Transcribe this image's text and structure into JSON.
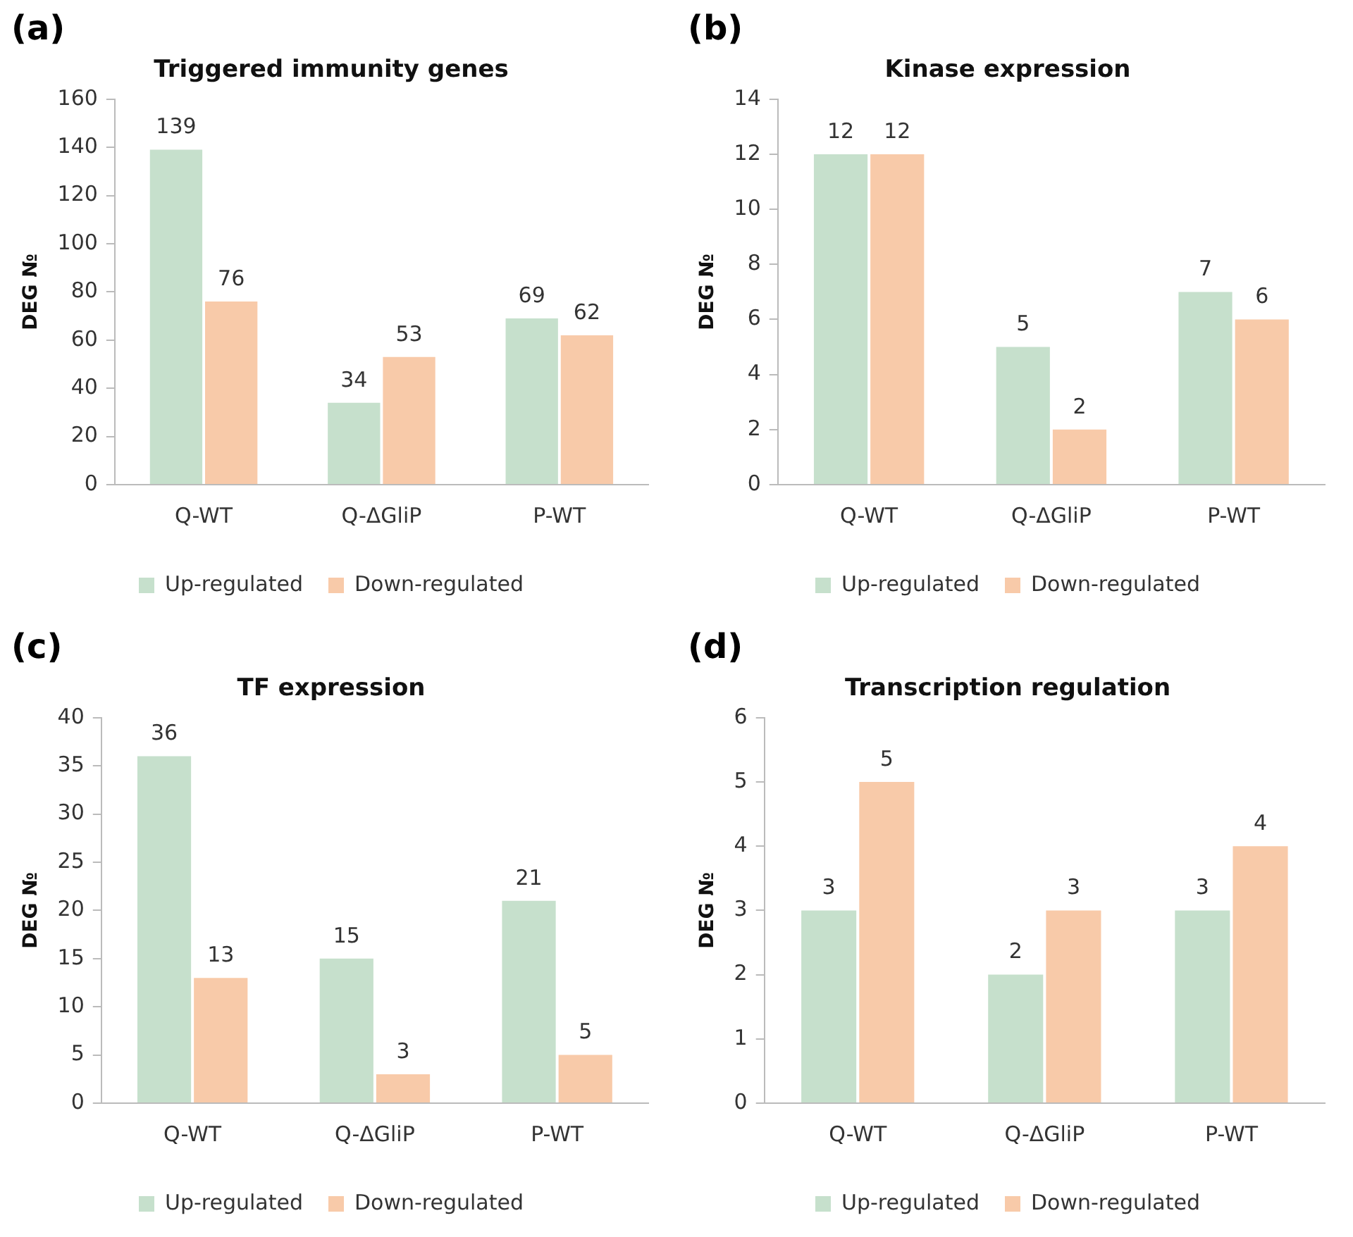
{
  "chart_data": [
    {
      "type": "bar",
      "title": "Triggered immunity genes",
      "ylabel": "DEG №",
      "annotations": [
        "(a)"
      ],
      "categories": [
        "Q-WT",
        "Q-ΔGliP",
        "P-WT"
      ],
      "series": [
        {
          "name": "Up-regulated",
          "color": "#c6e0cc",
          "values": [
            139,
            34,
            69
          ]
        },
        {
          "name": "Down-regulated",
          "color": "#f8caa9",
          "values": [
            76,
            53,
            62
          ]
        }
      ],
      "ylim": [
        0,
        160
      ],
      "yticks": [
        0,
        20,
        40,
        60,
        80,
        100,
        120,
        140,
        160
      ],
      "grid": false,
      "legend": "bottom",
      "data_labels": true
    },
    {
      "type": "bar",
      "title": "Kinase expression",
      "ylabel": "DEG №",
      "annotations": [
        "(b)"
      ],
      "categories": [
        "Q-WT",
        "Q-ΔGliP",
        "P-WT"
      ],
      "series": [
        {
          "name": "Up-regulated",
          "color": "#c6e0cc",
          "values": [
            12,
            5,
            7
          ]
        },
        {
          "name": "Down-regulated",
          "color": "#f8caa9",
          "values": [
            12,
            2,
            6
          ]
        }
      ],
      "ylim": [
        0,
        14
      ],
      "yticks": [
        0,
        2,
        4,
        6,
        8,
        10,
        12,
        14
      ],
      "grid": false,
      "legend": "bottom",
      "data_labels": true
    },
    {
      "type": "bar",
      "title": "TF expression",
      "ylabel": "DEG №",
      "annotations": [
        "(c)"
      ],
      "categories": [
        "Q-WT",
        "Q-ΔGliP",
        "P-WT"
      ],
      "series": [
        {
          "name": "Up-regulated",
          "color": "#c6e0cc",
          "values": [
            36,
            15,
            21
          ]
        },
        {
          "name": "Down-regulated",
          "color": "#f8caa9",
          "values": [
            13,
            3,
            5
          ]
        }
      ],
      "ylim": [
        0,
        40
      ],
      "yticks": [
        0,
        5,
        10,
        15,
        20,
        25,
        30,
        35,
        40
      ],
      "grid": false,
      "legend": "bottom",
      "data_labels": true
    },
    {
      "type": "bar",
      "title": "Transcription regulation",
      "ylabel": "DEG №",
      "annotations": [
        "(d)"
      ],
      "categories": [
        "Q-WT",
        "Q-ΔGliP",
        "P-WT"
      ],
      "series": [
        {
          "name": "Up-regulated",
          "color": "#c6e0cc",
          "values": [
            3,
            2,
            3
          ]
        },
        {
          "name": "Down-regulated",
          "color": "#f8caa9",
          "values": [
            5,
            3,
            4
          ]
        }
      ],
      "ylim": [
        0,
        6
      ],
      "yticks": [
        0,
        1,
        2,
        3,
        4,
        5,
        6
      ],
      "grid": false,
      "legend": "bottom",
      "data_labels": true
    }
  ]
}
